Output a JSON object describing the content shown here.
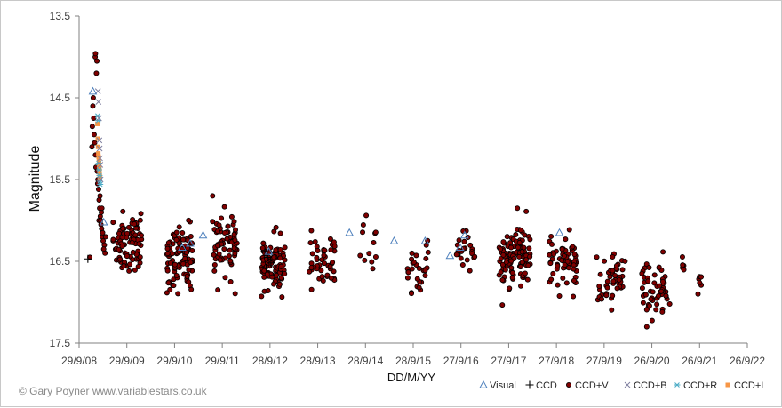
{
  "credit": "© Gary Poyner  www.variablestars.co.uk",
  "chart_data": {
    "type": "scatter",
    "title": "",
    "xlabel": "DD/M/YY",
    "ylabel": "Magnitude",
    "x_tick_labels": [
      "29/9/08",
      "29/9/09",
      "29/9/10",
      "29/9/11",
      "28/9/12",
      "28/9/13",
      "28/9/14",
      "28/9/15",
      "27/9/16",
      "27/9/17",
      "27/9/18",
      "27/9/19",
      "26/9/20",
      "26/9/21",
      "26/9/22"
    ],
    "y_tick_labels": [
      "13.5",
      "14.5",
      "15.5",
      "16.5",
      "17.5"
    ],
    "xlim": [
      "2008-09-29",
      "2022-09-26"
    ],
    "ylim": [
      17.5,
      13.5
    ],
    "y_inverted": true,
    "grid": false,
    "legend_position": "bottom-right",
    "series": [
      {
        "name": "Visual",
        "marker": "triangle",
        "color": "#4f81bd",
        "points": [
          [
            "2009-01-12",
            14.42
          ],
          [
            "2009-04-05",
            16.02
          ],
          [
            "2010-11-26",
            16.33
          ],
          [
            "2011-01-26",
            16.28
          ],
          [
            "2011-05-05",
            16.18
          ],
          [
            "2012-09-19",
            16.38
          ],
          [
            "2014-05-28",
            16.15
          ],
          [
            "2015-05-05",
            16.25
          ],
          [
            "2015-12-28",
            16.25
          ],
          [
            "2016-07-05",
            16.43
          ],
          [
            "2016-09-20",
            16.33
          ],
          [
            "2016-10-25",
            16.18
          ],
          [
            "2018-10-20",
            16.15
          ]
        ]
      },
      {
        "name": "CCD",
        "marker": "plus",
        "color": "#000000",
        "points": [
          [
            "2008-12-05",
            16.47
          ],
          [
            "2012-08-20",
            16.38
          ],
          [
            "2012-09-10",
            16.45
          ],
          [
            "2012-10-05",
            16.52
          ],
          [
            "2012-08-30",
            16.58
          ]
        ]
      },
      {
        "name": "CCD+V",
        "marker": "circle",
        "color": "#800000",
        "edge": "#000000",
        "clusters": [
          {
            "start": "2009-06-15",
            "end": "2010-01-20",
            "mean": 16.3,
            "sd": 0.17,
            "n": 85
          },
          {
            "start": "2010-08-01",
            "end": "2011-02-15",
            "mean": 16.46,
            "sd": 0.2,
            "n": 95
          },
          {
            "start": "2011-07-15",
            "end": "2012-01-20",
            "mean": 16.32,
            "sd": 0.2,
            "n": 70
          },
          {
            "start": "2012-07-25",
            "end": "2013-01-25",
            "mean": 16.52,
            "sd": 0.15,
            "n": 90
          },
          {
            "start": "2013-07-25",
            "end": "2014-02-15",
            "mean": 16.45,
            "sd": 0.18,
            "n": 45
          },
          {
            "start": "2014-08-15",
            "end": "2015-01-15",
            "mean": 16.3,
            "sd": 0.15,
            "n": 12
          },
          {
            "start": "2015-08-15",
            "end": "2016-01-25",
            "mean": 16.58,
            "sd": 0.13,
            "n": 30
          },
          {
            "start": "2016-08-15",
            "end": "2017-01-15",
            "mean": 16.35,
            "sd": 0.12,
            "n": 25
          },
          {
            "start": "2017-07-15",
            "end": "2018-03-10",
            "mean": 16.42,
            "sd": 0.2,
            "n": 110
          },
          {
            "start": "2018-08-01",
            "end": "2019-03-05",
            "mean": 16.52,
            "sd": 0.17,
            "n": 60
          },
          {
            "start": "2019-08-01",
            "end": "2020-03-10",
            "mean": 16.72,
            "sd": 0.15,
            "n": 45
          },
          {
            "start": "2020-07-10",
            "end": "2021-02-10",
            "mean": 16.82,
            "sd": 0.18,
            "n": 55
          },
          {
            "start": "2021-05-15",
            "end": "2021-06-20",
            "mean": 16.55,
            "sd": 0.06,
            "n": 5
          },
          {
            "start": "2021-09-01",
            "end": "2021-10-10",
            "mean": 16.75,
            "sd": 0.1,
            "n": 6
          }
        ],
        "outburst_points": [
          [
            "2008-12-20",
            16.45
          ],
          [
            "2009-01-05",
            15.1
          ],
          [
            "2009-01-08",
            14.85
          ],
          [
            "2009-01-12",
            14.6
          ],
          [
            "2009-01-15",
            14.5
          ],
          [
            "2009-01-18",
            14.75
          ],
          [
            "2009-01-22",
            14.95
          ],
          [
            "2009-01-26",
            15.05
          ],
          [
            "2009-02-01",
            15.2
          ],
          [
            "2009-02-05",
            15.35
          ],
          [
            "2009-01-30",
            14.0
          ],
          [
            "2009-02-01",
            13.96
          ],
          [
            "2009-02-08",
            14.2
          ],
          [
            "2009-02-12",
            14.05
          ],
          [
            "2009-02-15",
            15.4
          ],
          [
            "2009-02-20",
            15.5
          ],
          [
            "2009-02-25",
            15.62
          ],
          [
            "2009-03-01",
            15.75
          ],
          [
            "2009-03-05",
            15.85
          ],
          [
            "2009-03-10",
            15.95
          ],
          [
            "2009-03-15",
            16.05
          ],
          [
            "2009-03-20",
            16.1
          ],
          [
            "2009-03-25",
            16.2
          ],
          [
            "2009-04-01",
            16.25
          ],
          [
            "2009-04-10",
            16.3
          ],
          [
            "2009-04-15",
            16.4
          ],
          [
            "2009-02-28",
            16.0
          ],
          [
            "2009-03-08",
            15.7
          ],
          [
            "2009-03-18",
            15.9
          ],
          [
            "2009-03-28",
            16.15
          ],
          [
            "2009-04-05",
            16.35
          ],
          [
            "2009-04-20",
            16.2
          ],
          [
            "2009-02-18",
            15.55
          ],
          [
            "2009-03-12",
            16.0
          ],
          [
            "2009-03-22",
            15.85
          ]
        ]
      },
      {
        "name": "CCD+B",
        "marker": "x",
        "color": "#7f7f9f",
        "points": [
          [
            "2009-02-20",
            14.42
          ],
          [
            "2009-02-24",
            14.55
          ],
          [
            "2009-02-28",
            14.75
          ],
          [
            "2009-03-03",
            15.02
          ],
          [
            "2009-03-05",
            15.12
          ],
          [
            "2009-03-08",
            15.24
          ],
          [
            "2009-03-10",
            15.32
          ],
          [
            "2009-03-12",
            15.5
          ]
        ]
      },
      {
        "name": "CCD+R",
        "marker": "asterisk",
        "color": "#4bacc6",
        "points": [
          [
            "2009-02-18",
            14.72
          ],
          [
            "2009-02-22",
            14.78
          ],
          [
            "2009-02-26",
            15.3
          ],
          [
            "2009-03-01",
            15.38
          ],
          [
            "2009-03-04",
            15.45
          ],
          [
            "2009-03-06",
            15.52
          ],
          [
            "2009-03-09",
            15.56
          ]
        ]
      },
      {
        "name": "CCD+I",
        "marker": "square",
        "color": "#f79646",
        "points": [
          [
            "2009-02-16",
            14.82
          ],
          [
            "2009-02-19",
            15.0
          ],
          [
            "2009-02-21",
            15.1
          ],
          [
            "2009-02-23",
            15.18
          ],
          [
            "2009-02-25",
            15.22
          ],
          [
            "2009-02-27",
            15.26
          ],
          [
            "2009-03-01",
            15.3
          ],
          [
            "2009-03-02",
            15.34
          ],
          [
            "2009-03-03",
            15.36
          ],
          [
            "2009-03-04",
            15.4
          ],
          [
            "2009-03-05",
            15.44
          ],
          [
            "2009-03-06",
            15.46
          ],
          [
            "2009-03-07",
            15.48
          ]
        ]
      }
    ]
  }
}
